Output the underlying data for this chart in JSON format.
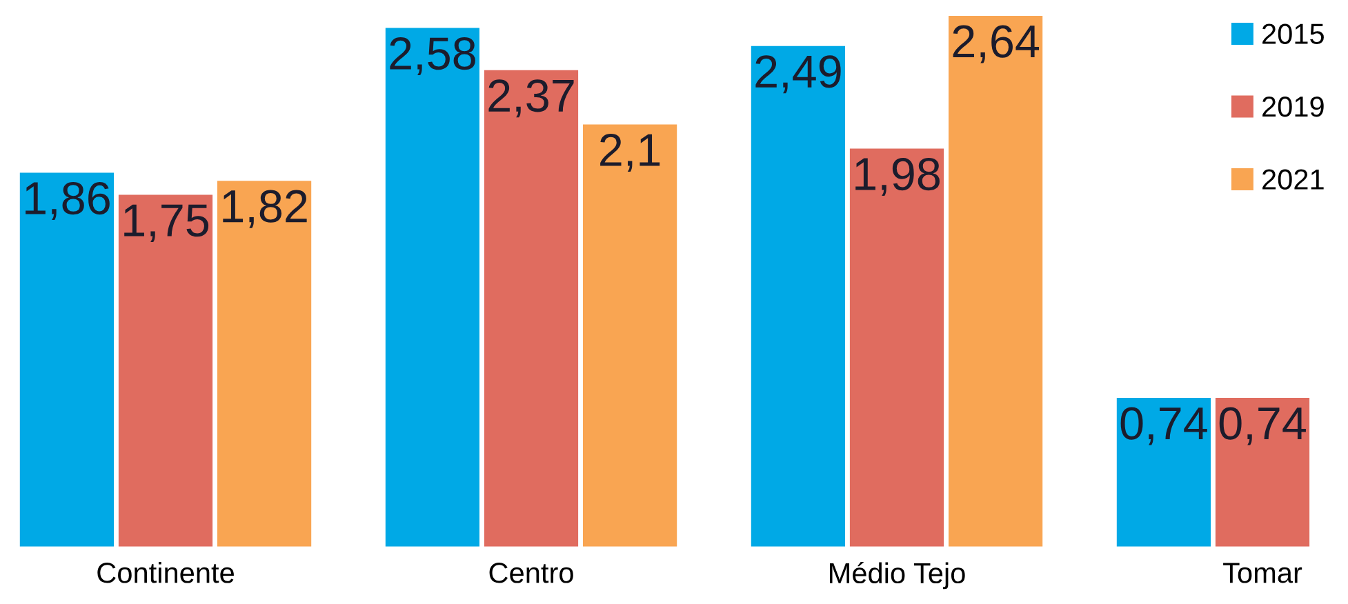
{
  "chart_data": {
    "type": "bar",
    "categories": [
      "Continente",
      "Centro",
      "Médio Tejo",
      "Tomar"
    ],
    "series": [
      {
        "name": "2015",
        "color": "#00a9e6",
        "values": [
          1.86,
          2.58,
          2.49,
          0.74
        ],
        "value_labels": [
          "1,86",
          "2,58",
          "2,49",
          "0,74"
        ]
      },
      {
        "name": "2019",
        "color": "#e06c5f",
        "values": [
          1.75,
          2.37,
          1.98,
          0.74
        ],
        "value_labels": [
          "1,75",
          "2,37",
          "1,98",
          "0,74"
        ]
      },
      {
        "name": "2021",
        "color": "#f9a552",
        "values": [
          1.82,
          2.1,
          2.64,
          null
        ],
        "value_labels": [
          "1,82",
          "2,1",
          "2,64",
          null
        ]
      }
    ],
    "tick_labels": "x",
    "grid": false,
    "legend": "top right"
  }
}
